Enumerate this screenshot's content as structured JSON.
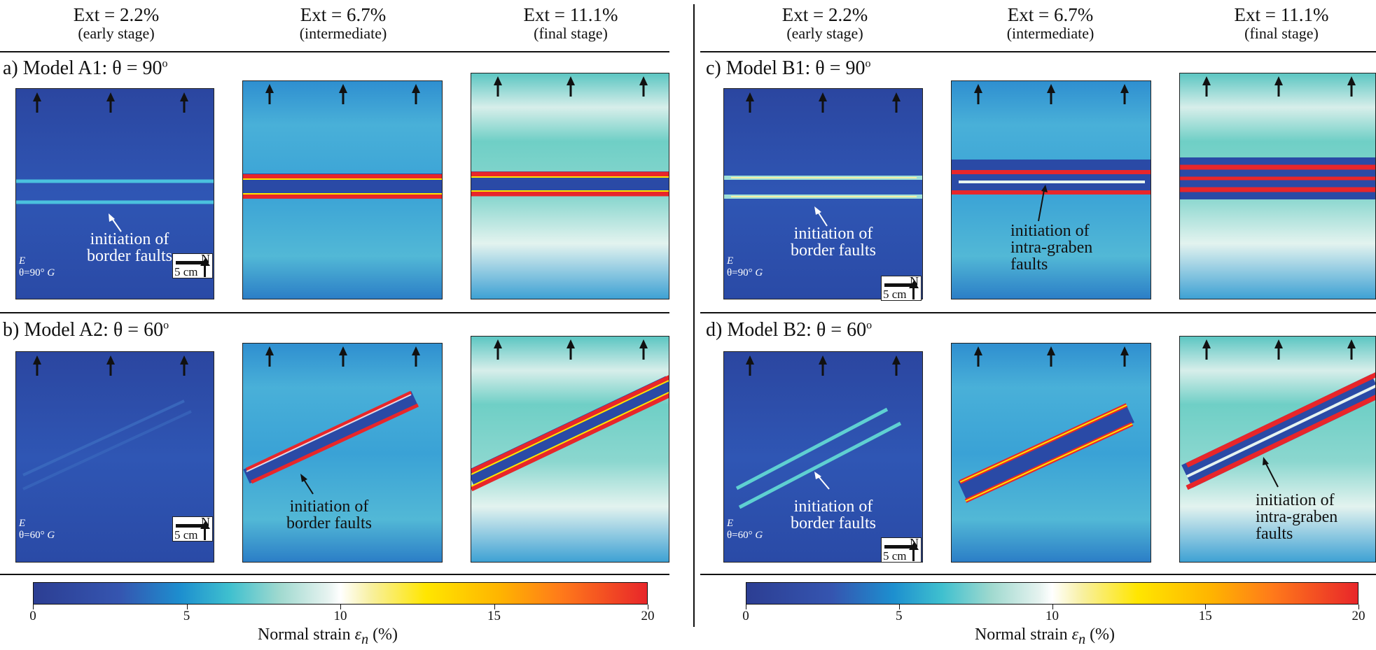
{
  "stages": [
    {
      "ext": "Ext = 2.2%",
      "sub": "(early stage)"
    },
    {
      "ext": "Ext = 6.7%",
      "sub": "(intermediate)"
    },
    {
      "ext": "Ext = 11.1%",
      "sub": "(final stage)"
    }
  ],
  "rows": {
    "a": {
      "label": "a)  Model A1: θ = 90",
      "sup": "o"
    },
    "b": {
      "label": "b)  Model A2: θ = 60",
      "sup": "o"
    },
    "c": {
      "label": "c)  Model B1: θ = 90",
      "sup": "o"
    },
    "d": {
      "label": "d)  Model B2: θ = 60",
      "sup": "o"
    }
  },
  "annotations": {
    "a_init": "initiation of\nborder faults",
    "b_init": "initiation of\nborder faults",
    "c_init": "initiation of\nborder faults",
    "c_intra": "initiation of\nintra-graben\nfaults",
    "d_init": "initiation of\nborder faults",
    "d_intra": "initiation of\nintra-graben\nfaults"
  },
  "axis_labels": {
    "e": "E",
    "g": "G",
    "theta90": "θ=90°",
    "theta60": "θ=60°"
  },
  "scale_bar": {
    "length": "5 cm",
    "north": "N"
  },
  "colorbar": {
    "ticks": [
      "0",
      "5",
      "10",
      "15",
      "20"
    ],
    "title_prefix": "Normal strain ",
    "symbol": "ε",
    "subscript": "n",
    "title_suffix": " (%)"
  },
  "colors": {
    "low": "#2c3e93",
    "mid": "#ffffff",
    "high": "#e8262a",
    "fault": "#e8262a"
  }
}
